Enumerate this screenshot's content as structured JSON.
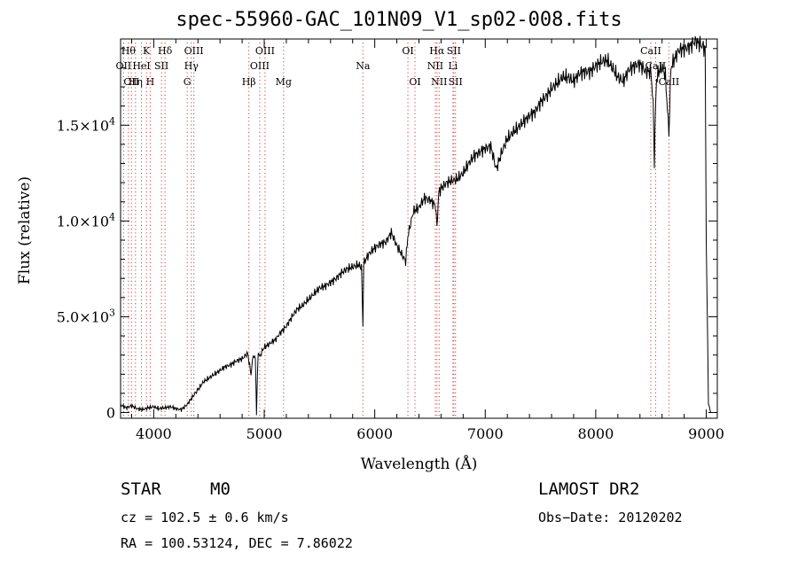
{
  "chart_data": {
    "type": "line",
    "title": "spec-55960-GAC_101N09_V1_sp02-008.fits",
    "xlabel": "Wavelength (Å)",
    "ylabel": "Flux (relative)",
    "xlim": [
      3700,
      9100
    ],
    "ylim": [
      -300,
      19500
    ],
    "grid": false,
    "x_ticks": [
      4000,
      5000,
      6000,
      7000,
      8000,
      9000
    ],
    "x_tick_labels": [
      "4000",
      "5000",
      "6000",
      "7000",
      "8000",
      "9000"
    ],
    "y_ticks": [
      0,
      5000,
      10000,
      15000
    ],
    "y_tick_labels": [
      {
        "mantissa": "0",
        "exp": ""
      },
      {
        "mantissa": "5.0×10",
        "exp": "3"
      },
      {
        "mantissa": "1.0×10",
        "exp": "4"
      },
      {
        "mantissa": "1.5×10",
        "exp": "4"
      }
    ],
    "series": [
      {
        "x": [
          3700,
          3750,
          3800,
          3850,
          3900,
          3950,
          4000,
          4050,
          4100,
          4150,
          4200,
          4250,
          4300,
          4350,
          4400,
          4450,
          4500,
          4550,
          4600,
          4650,
          4700,
          4750,
          4800,
          4850,
          4880,
          4900,
          4920,
          4930,
          4945,
          4960,
          4980,
          5000,
          5050,
          5100,
          5150,
          5200,
          5250,
          5300,
          5350,
          5400,
          5450,
          5500,
          5550,
          5600,
          5650,
          5700,
          5750,
          5800,
          5850,
          5880,
          5893,
          5900,
          5920,
          5950,
          6000,
          6050,
          6100,
          6150,
          6200,
          6250,
          6280,
          6300,
          6330,
          6350,
          6400,
          6450,
          6500,
          6550,
          6563,
          6580,
          6600,
          6650,
          6700,
          6750,
          6800,
          6850,
          6900,
          6950,
          7000,
          7050,
          7100,
          7150,
          7200,
          7250,
          7300,
          7350,
          7400,
          7450,
          7500,
          7550,
          7600,
          7650,
          7700,
          7750,
          7800,
          7850,
          7900,
          7950,
          8000,
          8050,
          8100,
          8150,
          8200,
          8250,
          8300,
          8350,
          8400,
          8450,
          8500,
          8520,
          8530,
          8542,
          8550,
          8570,
          8600,
          8630,
          8662,
          8680,
          8700,
          8750,
          8800,
          8850,
          8900,
          8950,
          8990,
          9000,
          9020,
          9040
        ],
        "y": [
          400,
          250,
          350,
          200,
          150,
          250,
          300,
          200,
          250,
          300,
          200,
          150,
          400,
          800,
          1200,
          1600,
          1800,
          2000,
          2200,
          2400,
          2500,
          2700,
          2800,
          3100,
          2000,
          3000,
          2800,
          -50,
          3200,
          2900,
          3200,
          3400,
          3600,
          3800,
          4200,
          4500,
          5000,
          5400,
          5600,
          5900,
          6200,
          6500,
          6600,
          6800,
          7000,
          7300,
          7500,
          7600,
          7700,
          7600,
          4500,
          7800,
          8000,
          8300,
          8600,
          8800,
          8900,
          9400,
          8700,
          8200,
          7900,
          9200,
          10000,
          10500,
          10700,
          11200,
          11100,
          10800,
          9700,
          11500,
          11700,
          12000,
          12100,
          12200,
          12500,
          13000,
          13400,
          13600,
          13800,
          13900,
          12700,
          13600,
          14300,
          14600,
          14900,
          15200,
          15500,
          15700,
          16200,
          16500,
          16900,
          17200,
          17500,
          17500,
          17300,
          17700,
          17800,
          17800,
          18100,
          18300,
          18400,
          18000,
          17500,
          17300,
          17900,
          18100,
          18200,
          17800,
          17800,
          16000,
          13100,
          16200,
          17400,
          17800,
          18000,
          17600,
          14600,
          18000,
          18300,
          18900,
          19000,
          19100,
          19400,
          19200,
          19000,
          9000,
          500,
          0
        ]
      }
    ],
    "lines": [
      {
        "wl": 3727,
        "label": "OII",
        "row": 2
      },
      {
        "wl": 3771,
        "label": "Hθ",
        "row": 1
      },
      {
        "wl": 3798,
        "label": "OII",
        "row": 3
      },
      {
        "wl": 3835,
        "label": "Hη",
        "row": 3
      },
      {
        "wl": 3889,
        "label": "HeI",
        "row": 2
      },
      {
        "wl": 3934,
        "label": "K",
        "row": 1
      },
      {
        "wl": 3968,
        "label": "H",
        "row": 3
      },
      {
        "wl": 4070,
        "label": "SII",
        "row": 2
      },
      {
        "wl": 4102,
        "label": "Hδ",
        "row": 1
      },
      {
        "wl": 4303,
        "label": "G",
        "row": 3
      },
      {
        "wl": 4340,
        "label": "Hγ",
        "row": 2
      },
      {
        "wl": 4363,
        "label": "OIII",
        "row": 1
      },
      {
        "wl": 4861,
        "label": "Hβ",
        "row": 3
      },
      {
        "wl": 4959,
        "label": "OIII",
        "row": 2
      },
      {
        "wl": 5007,
        "label": "OIII",
        "row": 1
      },
      {
        "wl": 5175,
        "label": "Mg",
        "row": 3
      },
      {
        "wl": 5893,
        "label": "Na",
        "row": 2
      },
      {
        "wl": 6300,
        "label": "OI",
        "row": 1
      },
      {
        "wl": 6364,
        "label": "OI",
        "row": 3
      },
      {
        "wl": 6548,
        "label": "NII",
        "row": 2
      },
      {
        "wl": 6563,
        "label": "Hα",
        "row": 1
      },
      {
        "wl": 6583,
        "label": "NII",
        "row": 3
      },
      {
        "wl": 6708,
        "label": "Li",
        "row": 2
      },
      {
        "wl": 6716,
        "label": "SII",
        "row": 1
      },
      {
        "wl": 6731,
        "label": "SII",
        "row": 3
      },
      {
        "wl": 8498,
        "label": "CaII",
        "row": 1
      },
      {
        "wl": 8542,
        "label": "CaII",
        "row": 2
      },
      {
        "wl": 8662,
        "label": "CaII",
        "row": 3
      }
    ]
  },
  "info": {
    "object_class": "STAR",
    "subclass": "M0",
    "survey": "LAMOST DR2",
    "cz": "cz = 102.5 ± 0.6 km/s",
    "obs_date": "Obs−Date: 20120202",
    "radec": "RA = 100.53124, DEC =   7.86022"
  }
}
